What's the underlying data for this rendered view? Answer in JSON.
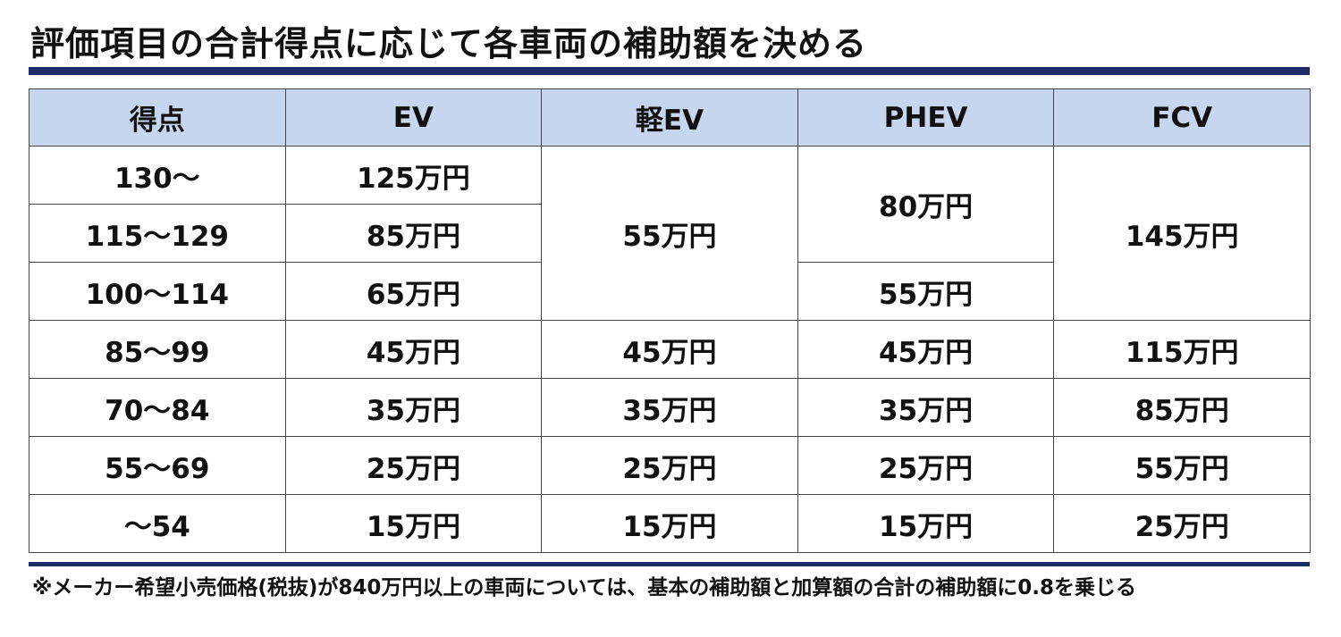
{
  "title": "評価項目の合計得点に応じて各車両の補助額を決める",
  "table": {
    "header": [
      "得点",
      "EV",
      "軽EV",
      "PHEV",
      "FCV"
    ],
    "rows": [
      [
        "130〜",
        "125万円",
        "55万円",
        "80万円",
        "145万円"
      ],
      [
        "115〜129",
        "85万円"
      ],
      [
        "100〜114",
        "65万円",
        "55万円"
      ],
      [
        "85〜99",
        "45万円",
        "45万円",
        "45万円",
        "115万円"
      ],
      [
        "70〜84",
        "35万円",
        "35万円",
        "35万円",
        "85万円"
      ],
      [
        "55〜69",
        "25万円",
        "25万円",
        "25万円",
        "55万円"
      ],
      [
        "〜54",
        "15万円",
        "15万円",
        "15万円",
        "25万円"
      ]
    ]
  },
  "footnote": "※メーカー希望小売価格(税抜)が840万円以上の車両については、基本の補助額と加算額の合計の補助額に0.8を乗じる"
}
